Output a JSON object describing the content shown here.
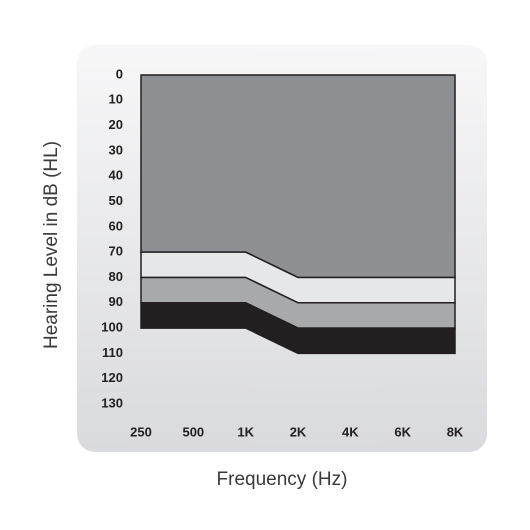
{
  "chart_data": {
    "type": "area",
    "stacked": true,
    "y_inverted": true,
    "x_label": "Frequency (Hz)",
    "y_label": "Hearing Level in dB (HL)",
    "categories": [
      "250",
      "500",
      "1K",
      "2K",
      "4K",
      "6K",
      "8K"
    ],
    "ylim": [
      0,
      130
    ],
    "yticks": [
      0,
      10,
      20,
      30,
      40,
      50,
      60,
      70,
      80,
      90,
      100,
      110,
      120,
      130
    ],
    "series": [
      {
        "color": "#8e8f92",
        "values": [
          70,
          70,
          70,
          80,
          80,
          80,
          80
        ]
      },
      {
        "color": "#e6e7e8",
        "values": [
          10,
          10,
          10,
          10,
          10,
          10,
          10
        ]
      },
      {
        "color": "#a7a9ab",
        "values": [
          10,
          10,
          10,
          10,
          10,
          10,
          10
        ]
      },
      {
        "color": "#231f20",
        "values": [
          10,
          10,
          10,
          10,
          10,
          10,
          10
        ]
      }
    ]
  }
}
